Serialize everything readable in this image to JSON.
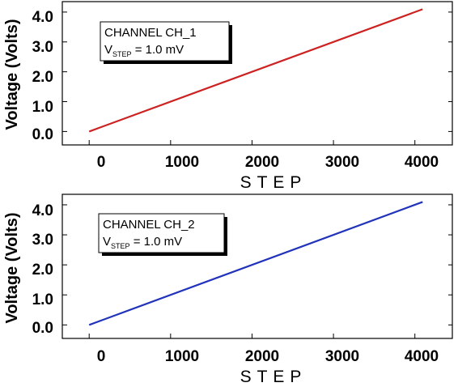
{
  "chart_data": [
    {
      "type": "line",
      "x_label": "STEP",
      "y_label": "Voltage (Volts)",
      "xlim": [
        -330,
        4460
      ],
      "ylim": [
        -0.45,
        4.35
      ],
      "x_ticks": [
        "0",
        "1000",
        "2000",
        "3000",
        "4000"
      ],
      "y_ticks": [
        "0.0",
        "1.0",
        "2.0",
        "3.0",
        "4.0"
      ],
      "legend": {
        "line1": "CHANNEL CH_1",
        "v": "V",
        "sub": "STEP",
        "value": " = 1.0 mV"
      },
      "series": [
        {
          "color": "#cc2222",
          "x": [
            0,
            4095
          ],
          "y": [
            0.0,
            4.095
          ]
        }
      ]
    },
    {
      "type": "line",
      "x_label": "STEP",
      "y_label": "Voltage (Volts)",
      "xlim": [
        -330,
        4460
      ],
      "ylim": [
        -0.45,
        4.35
      ],
      "x_ticks": [
        "0",
        "1000",
        "2000",
        "3000",
        "4000"
      ],
      "y_ticks": [
        "0.0",
        "1.0",
        "2.0",
        "3.0",
        "4.0"
      ],
      "legend": {
        "line1": "CHANNEL CH_2",
        "v": "V",
        "sub": "STEP",
        "value": " = 1.0 mV"
      },
      "series": [
        {
          "color": "#2233bb",
          "x": [
            0,
            4095
          ],
          "y": [
            0.0,
            4.095
          ]
        }
      ]
    }
  ]
}
